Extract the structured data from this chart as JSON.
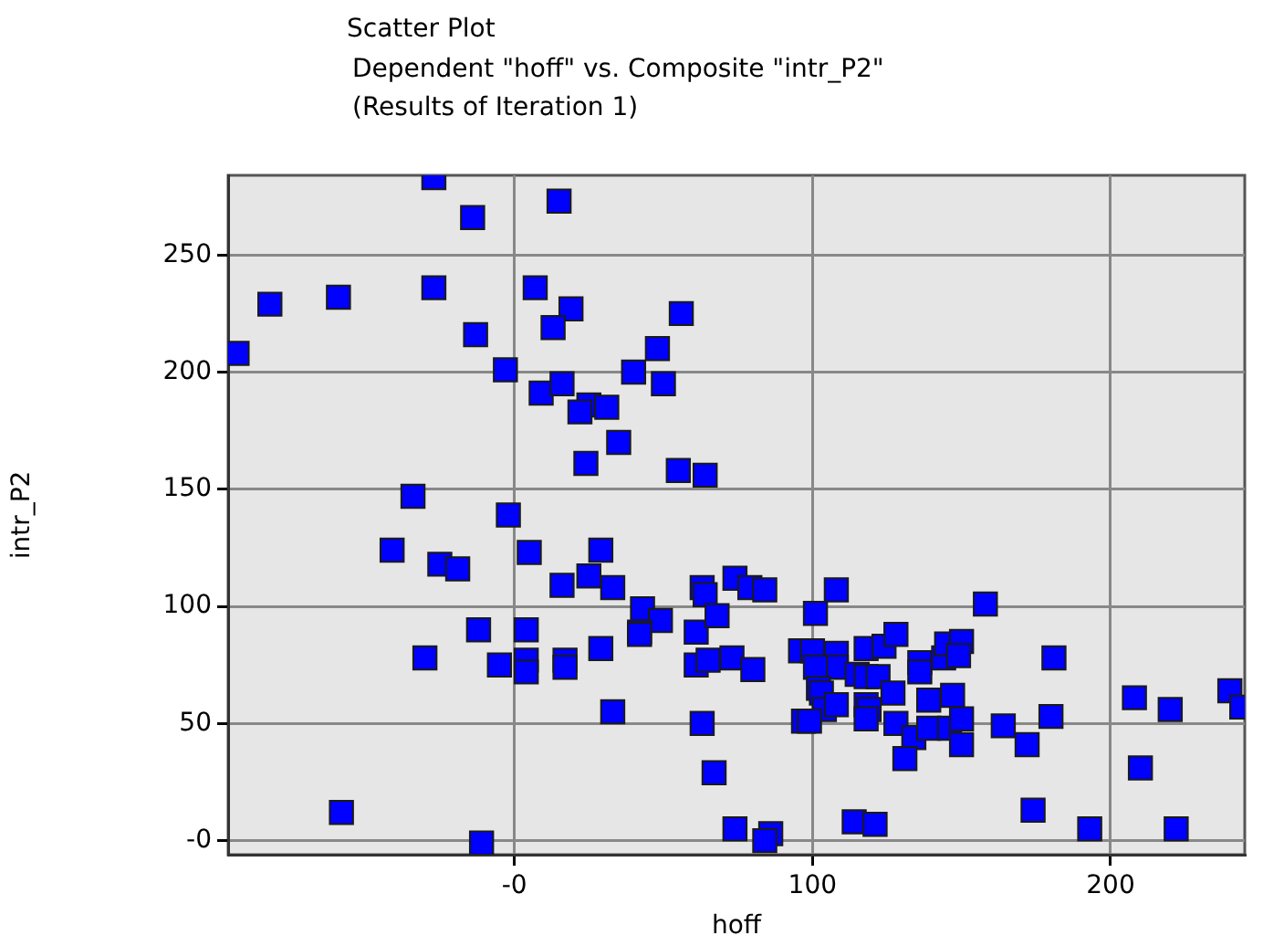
{
  "chart_data": {
    "type": "scatter",
    "title": "Scatter Plot",
    "subtitle": "Dependent \"hoff\" vs. Composite \"intr_P2\"\n(Results of Iteration 1)",
    "xlabel": "hoff",
    "ylabel": "intr_P2",
    "xlim": [
      -96,
      245
    ],
    "ylim": [
      -6,
      284
    ],
    "xticks": [
      {
        "value": 0,
        "label": "-0"
      },
      100,
      200
    ],
    "yticks": [
      {
        "value": 0,
        "label": "-0"
      },
      50,
      100,
      150,
      200,
      250
    ],
    "grid": true,
    "marker": "square",
    "legend": false,
    "series": [
      {
        "color": "#0000ff",
        "x": [
          -93,
          -82,
          -59,
          -27,
          -14,
          15,
          -27,
          -13,
          -3,
          7,
          19,
          13,
          56,
          48,
          40,
          50,
          9,
          16,
          25,
          22,
          31,
          35,
          24,
          55,
          64,
          -34,
          -2,
          -41,
          5,
          29,
          -25,
          -19,
          16,
          25,
          33,
          63,
          64,
          43,
          49,
          42,
          42,
          61,
          68,
          -12,
          4,
          -30,
          -5,
          4,
          4,
          17,
          17,
          29,
          61,
          65,
          33,
          63,
          67,
          -58,
          -11,
          73,
          74,
          79,
          84,
          108,
          101,
          158,
          80,
          96,
          100,
          108,
          108,
          101,
          102,
          103,
          104,
          108,
          97,
          99,
          115,
          118,
          122,
          118,
          124,
          128,
          127,
          118,
          119,
          118,
          128,
          134,
          131,
          136,
          136,
          139,
          139,
          144,
          145,
          150,
          149,
          147,
          146,
          150,
          150,
          164,
          172,
          181,
          180,
          174,
          193,
          208,
          210,
          220,
          222,
          240,
          244,
          114,
          121,
          74,
          86,
          84
        ],
        "values": [
          208,
          229,
          232,
          283,
          266,
          273,
          236,
          216,
          201,
          236,
          227,
          219,
          225,
          210,
          200,
          195,
          191,
          195,
          186,
          183,
          185,
          170,
          161,
          158,
          156,
          147,
          139,
          124,
          123,
          124,
          118,
          116,
          109,
          113,
          108,
          108,
          105,
          99,
          94,
          89,
          88,
          89,
          96,
          90,
          90,
          78,
          75,
          77,
          72,
          77,
          74,
          82,
          75,
          77,
          55,
          50,
          29,
          12,
          -1,
          78,
          112,
          108,
          107,
          107,
          97,
          101,
          73,
          81,
          81,
          80,
          74,
          74,
          65,
          63,
          56,
          58,
          51,
          51,
          71,
          70,
          70,
          82,
          83,
          88,
          63,
          58,
          56,
          52,
          50,
          44,
          35,
          76,
          72,
          60,
          48,
          78,
          84,
          85,
          79,
          62,
          48,
          52,
          41,
          49,
          41,
          78,
          53,
          13,
          5,
          61,
          31,
          56,
          5,
          64,
          57,
          8,
          7,
          5,
          3,
          0
        ]
      }
    ]
  }
}
